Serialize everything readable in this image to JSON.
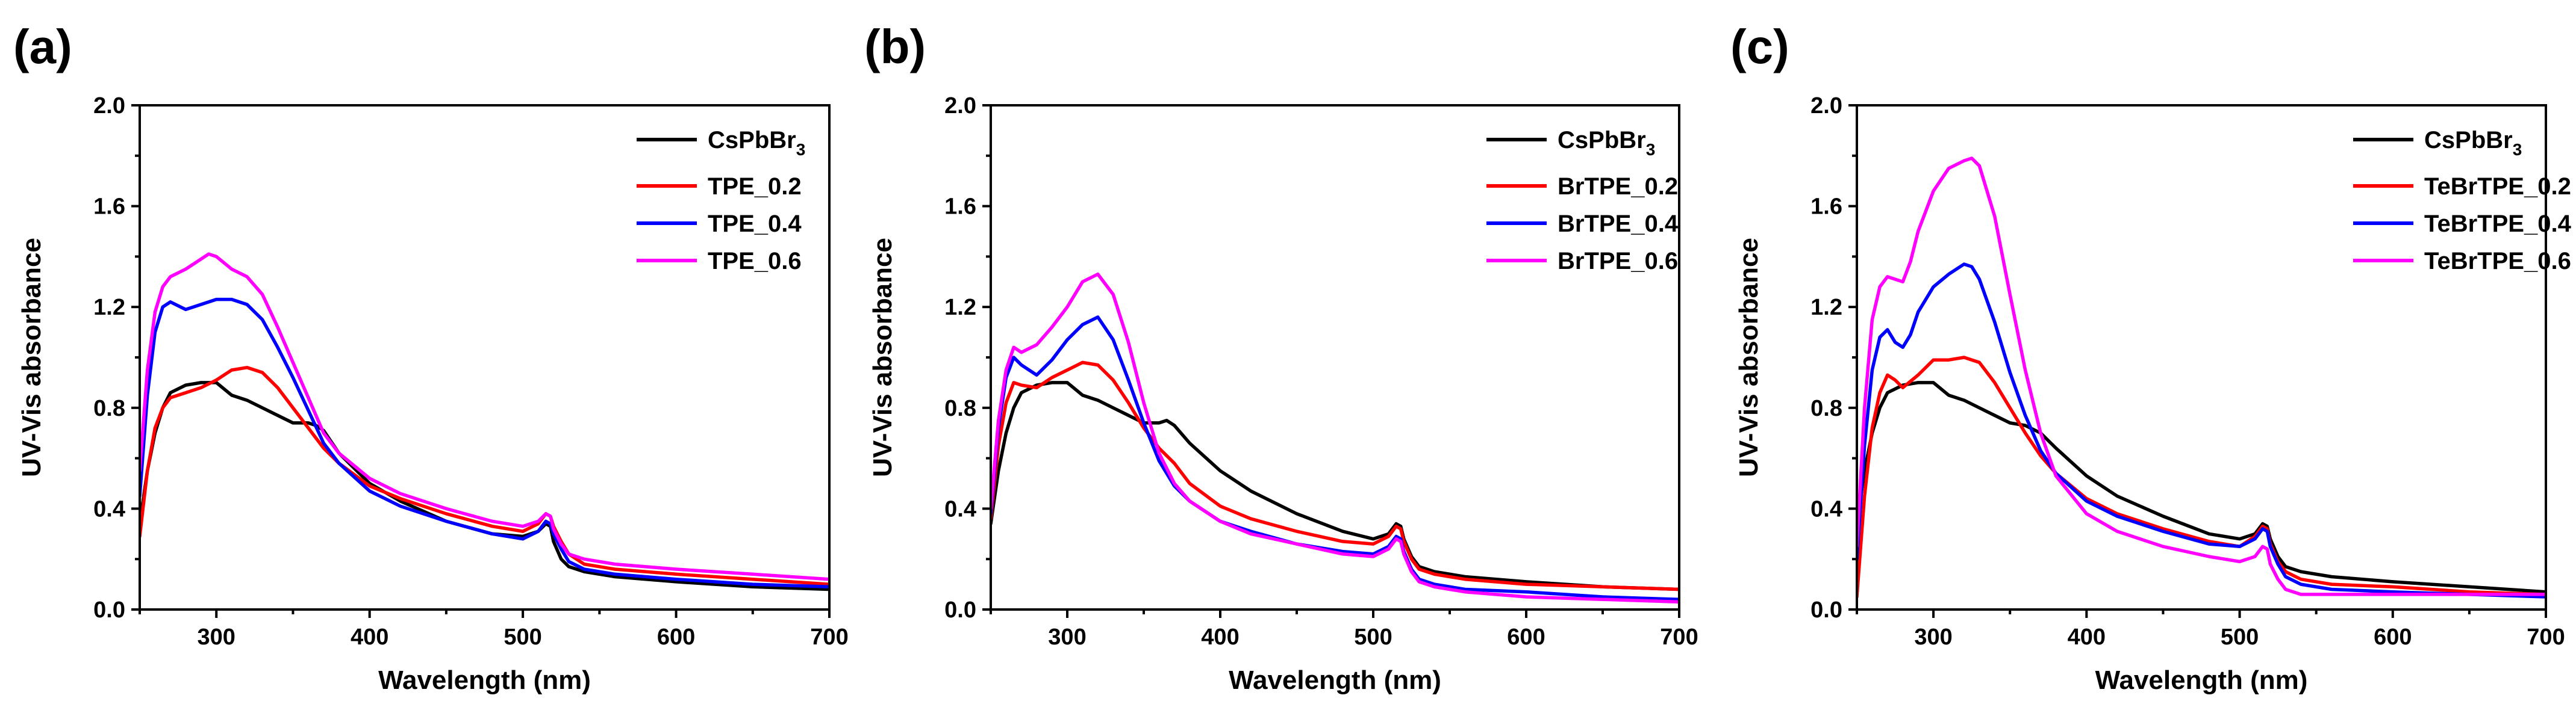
{
  "chart_data": [
    {
      "type": "line",
      "panel_label": "(a)",
      "xlabel": "Wavelength (nm)",
      "ylabel": "UV-Vis absorbance",
      "xlim": [
        250,
        700
      ],
      "ylim": [
        0.0,
        2.0
      ],
      "x_ticks": [
        "300",
        "400",
        "500",
        "600",
        "700"
      ],
      "y_ticks": [
        "0.0",
        "0.4",
        "0.8",
        "1.2",
        "1.6",
        "2.0"
      ],
      "legend_position": "top-right",
      "series": [
        {
          "name": "CsPbBr",
          "sub": "3",
          "color": "#000000",
          "x": [
            250,
            255,
            260,
            265,
            270,
            280,
            290,
            300,
            310,
            320,
            330,
            340,
            350,
            360,
            365,
            370,
            380,
            400,
            420,
            450,
            480,
            500,
            510,
            515,
            518,
            520,
            525,
            530,
            540,
            560,
            600,
            650,
            700
          ],
          "y": [
            0.34,
            0.55,
            0.7,
            0.8,
            0.86,
            0.89,
            0.9,
            0.9,
            0.85,
            0.83,
            0.8,
            0.77,
            0.74,
            0.74,
            0.73,
            0.71,
            0.62,
            0.5,
            0.43,
            0.35,
            0.3,
            0.29,
            0.31,
            0.34,
            0.33,
            0.27,
            0.2,
            0.17,
            0.15,
            0.13,
            0.11,
            0.09,
            0.08
          ]
        },
        {
          "name": "TPE_0.2",
          "color": "#ff0000",
          "x": [
            250,
            255,
            260,
            265,
            270,
            280,
            290,
            300,
            310,
            320,
            330,
            340,
            350,
            360,
            370,
            380,
            400,
            420,
            450,
            480,
            500,
            510,
            515,
            518,
            520,
            525,
            530,
            540,
            560,
            600,
            650,
            700
          ],
          "y": [
            0.29,
            0.55,
            0.72,
            0.8,
            0.84,
            0.86,
            0.88,
            0.91,
            0.95,
            0.96,
            0.94,
            0.88,
            0.8,
            0.72,
            0.64,
            0.58,
            0.49,
            0.44,
            0.38,
            0.33,
            0.31,
            0.34,
            0.38,
            0.37,
            0.33,
            0.27,
            0.22,
            0.18,
            0.16,
            0.14,
            0.12,
            0.1
          ]
        },
        {
          "name": "TPE_0.4",
          "color": "#0000ff",
          "x": [
            250,
            255,
            260,
            265,
            270,
            280,
            290,
            300,
            310,
            320,
            330,
            340,
            350,
            360,
            370,
            380,
            400,
            420,
            450,
            480,
            500,
            510,
            515,
            518,
            520,
            525,
            530,
            540,
            560,
            600,
            650,
            700
          ],
          "y": [
            0.45,
            0.85,
            1.1,
            1.2,
            1.22,
            1.19,
            1.21,
            1.23,
            1.23,
            1.21,
            1.15,
            1.04,
            0.92,
            0.79,
            0.66,
            0.58,
            0.47,
            0.41,
            0.35,
            0.3,
            0.28,
            0.31,
            0.35,
            0.34,
            0.3,
            0.24,
            0.19,
            0.16,
            0.14,
            0.12,
            0.1,
            0.09
          ]
        },
        {
          "name": "TPE_0.6",
          "color": "#ff00ff",
          "x": [
            250,
            255,
            260,
            265,
            270,
            280,
            290,
            295,
            300,
            310,
            320,
            330,
            340,
            350,
            360,
            370,
            380,
            400,
            420,
            450,
            480,
            500,
            510,
            515,
            518,
            520,
            525,
            530,
            540,
            560,
            600,
            650,
            700
          ],
          "y": [
            0.55,
            0.95,
            1.18,
            1.28,
            1.32,
            1.35,
            1.39,
            1.41,
            1.4,
            1.35,
            1.32,
            1.25,
            1.12,
            0.98,
            0.84,
            0.7,
            0.62,
            0.52,
            0.46,
            0.4,
            0.35,
            0.33,
            0.35,
            0.38,
            0.37,
            0.32,
            0.26,
            0.22,
            0.2,
            0.18,
            0.16,
            0.14,
            0.12
          ]
        }
      ]
    },
    {
      "type": "line",
      "panel_label": "(b)",
      "xlabel": "Wavelength (nm)",
      "ylabel": "UV-Vis absorbance",
      "xlim": [
        250,
        700
      ],
      "ylim": [
        0.0,
        2.0
      ],
      "x_ticks": [
        "300",
        "400",
        "500",
        "600",
        "700"
      ],
      "y_ticks": [
        "0.0",
        "0.4",
        "0.8",
        "1.2",
        "1.6",
        "2.0"
      ],
      "legend_position": "top-right",
      "series": [
        {
          "name": "CsPbBr",
          "sub": "3",
          "color": "#000000",
          "x": [
            250,
            255,
            260,
            265,
            270,
            280,
            290,
            300,
            310,
            320,
            330,
            340,
            350,
            360,
            365,
            370,
            380,
            400,
            420,
            450,
            480,
            500,
            510,
            515,
            518,
            520,
            525,
            530,
            540,
            560,
            600,
            650,
            700
          ],
          "y": [
            0.34,
            0.55,
            0.7,
            0.8,
            0.86,
            0.89,
            0.9,
            0.9,
            0.85,
            0.83,
            0.8,
            0.77,
            0.74,
            0.74,
            0.75,
            0.73,
            0.66,
            0.55,
            0.47,
            0.38,
            0.31,
            0.28,
            0.3,
            0.34,
            0.33,
            0.28,
            0.21,
            0.17,
            0.15,
            0.13,
            0.11,
            0.09,
            0.08
          ]
        },
        {
          "name": "BrTPE_0.2",
          "color": "#ff0000",
          "x": [
            250,
            255,
            260,
            265,
            270,
            280,
            290,
            300,
            310,
            320,
            330,
            340,
            350,
            360,
            370,
            380,
            400,
            420,
            450,
            480,
            500,
            510,
            515,
            518,
            520,
            525,
            530,
            540,
            560,
            600,
            650,
            700
          ],
          "y": [
            0.36,
            0.65,
            0.82,
            0.9,
            0.89,
            0.88,
            0.92,
            0.95,
            0.98,
            0.97,
            0.91,
            0.82,
            0.72,
            0.64,
            0.58,
            0.5,
            0.41,
            0.36,
            0.31,
            0.27,
            0.26,
            0.29,
            0.33,
            0.32,
            0.27,
            0.2,
            0.16,
            0.14,
            0.12,
            0.1,
            0.09,
            0.08
          ]
        },
        {
          "name": "BrTPE_0.4",
          "color": "#0000ff",
          "x": [
            250,
            255,
            260,
            265,
            270,
            280,
            290,
            300,
            310,
            320,
            330,
            340,
            350,
            360,
            370,
            380,
            400,
            420,
            450,
            480,
            500,
            510,
            515,
            518,
            520,
            525,
            530,
            540,
            560,
            600,
            650,
            700
          ],
          "y": [
            0.38,
            0.72,
            0.92,
            1.0,
            0.97,
            0.93,
            0.99,
            1.07,
            1.13,
            1.16,
            1.07,
            0.91,
            0.74,
            0.59,
            0.49,
            0.43,
            0.35,
            0.31,
            0.26,
            0.23,
            0.22,
            0.25,
            0.29,
            0.28,
            0.23,
            0.16,
            0.12,
            0.1,
            0.08,
            0.07,
            0.05,
            0.04
          ]
        },
        {
          "name": "BrTPE_0.6",
          "color": "#ff00ff",
          "x": [
            250,
            255,
            260,
            265,
            270,
            280,
            290,
            300,
            310,
            320,
            330,
            340,
            350,
            360,
            370,
            380,
            400,
            420,
            450,
            480,
            500,
            510,
            515,
            518,
            520,
            525,
            530,
            540,
            560,
            600,
            650,
            700
          ],
          "y": [
            0.4,
            0.75,
            0.95,
            1.04,
            1.02,
            1.05,
            1.12,
            1.2,
            1.3,
            1.33,
            1.25,
            1.06,
            0.82,
            0.62,
            0.5,
            0.43,
            0.35,
            0.3,
            0.26,
            0.22,
            0.21,
            0.24,
            0.28,
            0.27,
            0.22,
            0.15,
            0.11,
            0.09,
            0.07,
            0.05,
            0.04,
            0.03
          ]
        }
      ]
    },
    {
      "type": "line",
      "panel_label": "(c)",
      "xlabel": "Wavelength (nm)",
      "ylabel": "UV-Vis absorbance",
      "xlim": [
        250,
        700
      ],
      "ylim": [
        0.0,
        2.0
      ],
      "x_ticks": [
        "300",
        "400",
        "500",
        "600",
        "700"
      ],
      "y_ticks": [
        "0.0",
        "0.4",
        "0.8",
        "1.2",
        "1.6",
        "2.0"
      ],
      "legend_position": "top-right",
      "series": [
        {
          "name": "CsPbBr",
          "sub": "3",
          "color": "#000000",
          "x": [
            250,
            255,
            260,
            265,
            270,
            280,
            290,
            300,
            310,
            320,
            330,
            340,
            350,
            360,
            370,
            380,
            400,
            420,
            450,
            480,
            500,
            510,
            515,
            518,
            520,
            525,
            530,
            540,
            560,
            600,
            650,
            700
          ],
          "y": [
            0.34,
            0.55,
            0.7,
            0.8,
            0.86,
            0.89,
            0.9,
            0.9,
            0.85,
            0.83,
            0.8,
            0.77,
            0.74,
            0.73,
            0.7,
            0.64,
            0.53,
            0.45,
            0.37,
            0.3,
            0.28,
            0.3,
            0.34,
            0.33,
            0.28,
            0.21,
            0.17,
            0.15,
            0.13,
            0.11,
            0.09,
            0.07
          ]
        },
        {
          "name": "TeBrTPE_0.2",
          "color": "#ff0000",
          "x": [
            250,
            255,
            260,
            265,
            270,
            275,
            280,
            290,
            300,
            310,
            320,
            330,
            340,
            350,
            360,
            370,
            380,
            400,
            420,
            450,
            480,
            500,
            510,
            515,
            518,
            520,
            525,
            530,
            540,
            560,
            600,
            650,
            700
          ],
          "y": [
            0.05,
            0.45,
            0.72,
            0.86,
            0.93,
            0.91,
            0.88,
            0.93,
            0.99,
            0.99,
            1.0,
            0.98,
            0.9,
            0.8,
            0.7,
            0.61,
            0.54,
            0.44,
            0.38,
            0.32,
            0.27,
            0.25,
            0.29,
            0.33,
            0.32,
            0.26,
            0.19,
            0.15,
            0.12,
            0.1,
            0.09,
            0.07,
            0.06
          ]
        },
        {
          "name": "TeBrTPE_0.4",
          "color": "#0000ff",
          "x": [
            250,
            255,
            260,
            265,
            270,
            275,
            280,
            285,
            290,
            300,
            310,
            320,
            325,
            330,
            340,
            350,
            360,
            370,
            380,
            400,
            420,
            450,
            480,
            500,
            510,
            515,
            518,
            520,
            525,
            530,
            540,
            560,
            600,
            650,
            700
          ],
          "y": [
            0.2,
            0.65,
            0.95,
            1.08,
            1.11,
            1.06,
            1.04,
            1.09,
            1.18,
            1.28,
            1.33,
            1.37,
            1.36,
            1.31,
            1.14,
            0.94,
            0.77,
            0.63,
            0.54,
            0.43,
            0.37,
            0.31,
            0.26,
            0.25,
            0.28,
            0.32,
            0.31,
            0.25,
            0.18,
            0.13,
            0.1,
            0.08,
            0.07,
            0.06,
            0.05
          ]
        },
        {
          "name": "TeBrTPE_0.6",
          "color": "#ff00ff",
          "x": [
            250,
            255,
            260,
            265,
            270,
            275,
            280,
            285,
            290,
            300,
            310,
            320,
            325,
            330,
            340,
            350,
            360,
            370,
            380,
            400,
            420,
            450,
            480,
            500,
            510,
            515,
            518,
            520,
            525,
            530,
            540,
            560,
            600,
            650,
            700
          ],
          "y": [
            0.25,
            0.8,
            1.15,
            1.28,
            1.32,
            1.31,
            1.3,
            1.38,
            1.5,
            1.66,
            1.75,
            1.78,
            1.79,
            1.76,
            1.56,
            1.25,
            0.95,
            0.7,
            0.53,
            0.38,
            0.31,
            0.25,
            0.21,
            0.19,
            0.21,
            0.25,
            0.24,
            0.18,
            0.12,
            0.08,
            0.06,
            0.06,
            0.06,
            0.06,
            0.06
          ]
        }
      ]
    }
  ]
}
